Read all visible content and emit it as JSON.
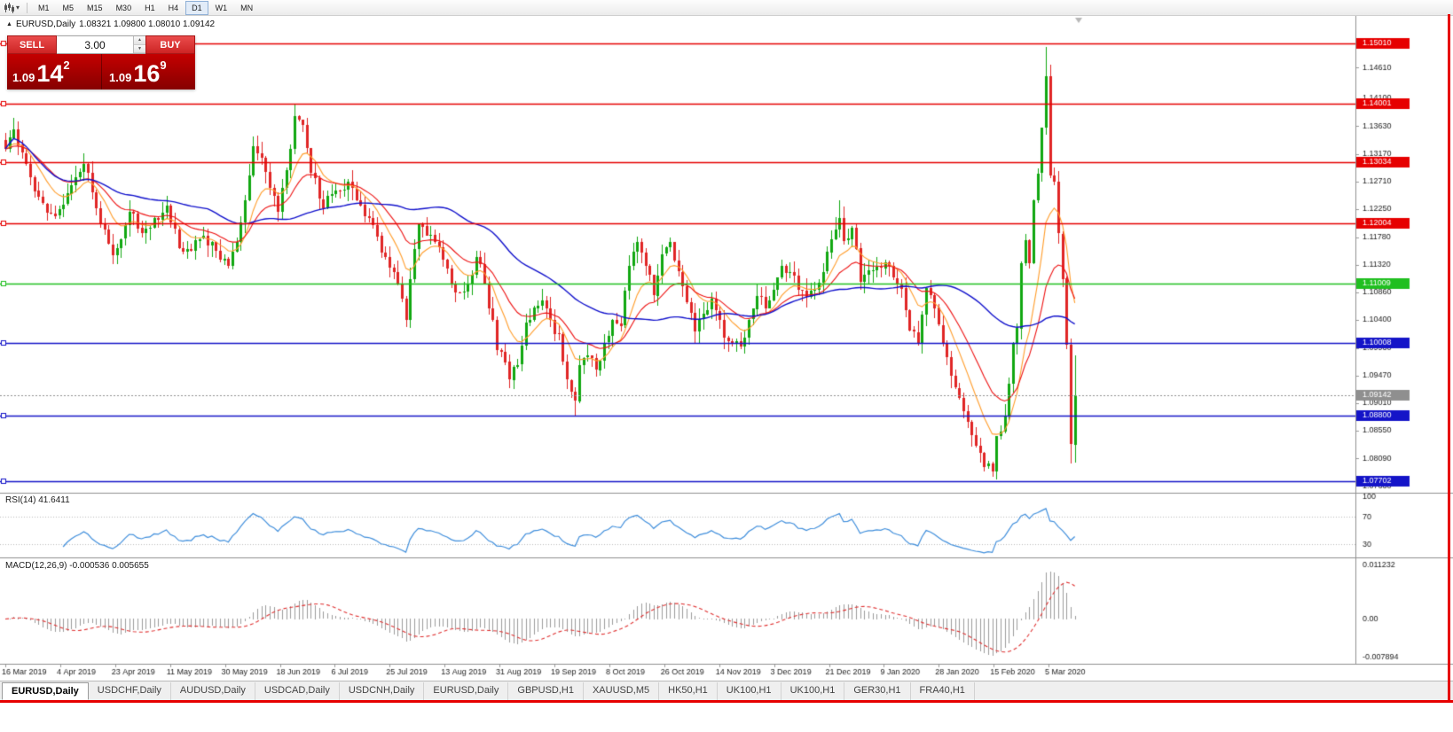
{
  "window": {
    "border_color": "#e60000"
  },
  "toolbar": {
    "timeframes": [
      "M1",
      "M5",
      "M15",
      "M30",
      "H1",
      "H4",
      "D1",
      "W1",
      "MN"
    ],
    "active_timeframe": "D1"
  },
  "chart": {
    "title_symbol": "EURUSD,Daily",
    "title_ohlc": "1.08321 1.09800 1.08010 1.09142"
  },
  "trade_panel": {
    "sell_label": "SELL",
    "buy_label": "BUY",
    "volume": "3.00",
    "sell_price": {
      "small": "1.09",
      "big": "14",
      "sup": "2"
    },
    "buy_price": {
      "small": "1.09",
      "big": "16",
      "sup": "9"
    }
  },
  "indicators": {
    "rsi_label": "RSI(14) 41.6411",
    "macd_label": "MACD(12,26,9) -0.000536 0.005655"
  },
  "tabs": {
    "active_index": 0,
    "items": [
      "EURUSD,Daily",
      "USDCHF,Daily",
      "AUDUSD,Daily",
      "USDCAD,Daily",
      "USDCNH,Daily",
      "EURUSD,Daily",
      "GBPUSD,H1",
      "XAUUSD,M5",
      "HK50,H1",
      "UK100,H1",
      "UK100,H1",
      "GER30,H1",
      "FRA40,H1"
    ]
  },
  "chart_data": {
    "type": "candlestick",
    "symbol": "EURUSD",
    "timeframe": "Daily",
    "seed": 1234567,
    "candle_count": 260,
    "candle_spacing": 4.655,
    "price_range": {
      "min": 1.0753,
      "max": 1.1547
    },
    "macd_range": {
      "min": -0.0093,
      "max": 0.0126
    },
    "axis_ticks": [
      1.1461,
      1.141,
      1.1363,
      1.1317,
      1.1271,
      1.1225,
      1.1178,
      1.1132,
      1.1086,
      1.104,
      1.0993,
      1.0947,
      1.0901,
      1.0855,
      1.0809,
      1.0763
    ],
    "hlines": [
      {
        "value": 1.1501,
        "label": "1.15010",
        "color": "#e60000"
      },
      {
        "value": 1.14001,
        "label": "1.14001",
        "color": "#e60000"
      },
      {
        "value": 1.13034,
        "label": "1.13034",
        "color": "#e60000"
      },
      {
        "value": 1.12004,
        "label": "1.12004",
        "color": "#e60000"
      },
      {
        "value": 1.11009,
        "label": "1.11009",
        "color": "#1fbf1f"
      },
      {
        "value": 1.10008,
        "label": "1.10008",
        "color": "#1414c8"
      },
      {
        "value": 1.088,
        "label": "1.08800",
        "color": "#1414c8"
      },
      {
        "value": 1.07702,
        "label": "1.07702",
        "color": "#1414c8"
      }
    ],
    "current_price": 1.09142,
    "current_price_label": "1.09142",
    "rsi_levels": [
      70,
      30
    ],
    "rsi_scale": [
      100,
      70,
      30
    ],
    "macd_scale": [
      "0.011232",
      "0.00",
      "-0.007894"
    ],
    "macd_scale_values": [
      0.011232,
      0,
      -0.007894
    ],
    "date_labels": [
      "16 Mar 2019",
      "4 Apr 2019",
      "23 Apr 2019",
      "11 May 2019",
      "30 May 2019",
      "18 Jun 2019",
      "6 Jul 2019",
      "25 Jul 2019",
      "13 Aug 2019",
      "31 Aug 2019",
      "19 Sep 2019",
      "8 Oct 2019",
      "26 Oct 2019",
      "14 Nov 2019",
      "3 Dec 2019",
      "21 Dec 2019",
      "9 Jan 2020",
      "28 Jan 2020",
      "15 Feb 2020",
      "5 Mar 2020"
    ],
    "anchors": [
      [
        0,
        1.1325
      ],
      [
        2,
        1.1358
      ],
      [
        5,
        1.13
      ],
      [
        8,
        1.1245
      ],
      [
        11,
        1.1218
      ],
      [
        13,
        1.1225
      ],
      [
        16,
        1.1265
      ],
      [
        19,
        1.13
      ],
      [
        22,
        1.1226
      ],
      [
        24,
        1.119
      ],
      [
        26,
        1.1148
      ],
      [
        28,
        1.1175
      ],
      [
        30,
        1.122
      ],
      [
        33,
        1.1185
      ],
      [
        36,
        1.121
      ],
      [
        39,
        1.123
      ],
      [
        42,
        1.116
      ],
      [
        45,
        1.1155
      ],
      [
        48,
        1.118
      ],
      [
        51,
        1.1155
      ],
      [
        54,
        1.113
      ],
      [
        56,
        1.117
      ],
      [
        58,
        1.124
      ],
      [
        60,
        1.133
      ],
      [
        62,
        1.131
      ],
      [
        64,
        1.126
      ],
      [
        66,
        1.122
      ],
      [
        68,
        1.129
      ],
      [
        70,
        1.138
      ],
      [
        72,
        1.1365
      ],
      [
        74,
        1.1285
      ],
      [
        77,
        1.1227
      ],
      [
        79,
        1.125
      ],
      [
        81,
        1.1255
      ],
      [
        83,
        1.127
      ],
      [
        85,
        1.124
      ],
      [
        88,
        1.121
      ],
      [
        90,
        1.118
      ],
      [
        92,
        1.1145
      ],
      [
        94,
        1.112
      ],
      [
        96,
        1.1076
      ],
      [
        97,
        1.104
      ],
      [
        98,
        1.1108
      ],
      [
        100,
        1.12
      ],
      [
        102,
        1.118
      ],
      [
        104,
        1.117
      ],
      [
        106,
        1.114
      ],
      [
        108,
        1.11
      ],
      [
        110,
        1.1085
      ],
      [
        112,
        1.11
      ],
      [
        114,
        1.1145
      ],
      [
        116,
        1.11
      ],
      [
        118,
        1.104
      ],
      [
        119,
        1.099
      ],
      [
        121,
        1.097
      ],
      [
        122,
        1.094
      ],
      [
        124,
        1.0965
      ],
      [
        126,
        1.1035
      ],
      [
        128,
        1.106
      ],
      [
        130,
        1.1073
      ],
      [
        132,
        1.104
      ],
      [
        134,
        1.1016
      ],
      [
        136,
        1.094
      ],
      [
        138,
        1.0905
      ],
      [
        139,
        1.0965
      ],
      [
        141,
        1.098
      ],
      [
        143,
        1.0957
      ],
      [
        145,
        1.1002
      ],
      [
        147,
        1.104
      ],
      [
        149,
        1.103
      ],
      [
        151,
        1.113
      ],
      [
        153,
        1.117
      ],
      [
        155,
        1.113
      ],
      [
        157,
        1.108
      ],
      [
        159,
        1.115
      ],
      [
        161,
        1.117
      ],
      [
        163,
        1.112
      ],
      [
        165,
        1.107
      ],
      [
        167,
        1.102
      ],
      [
        169,
        1.105
      ],
      [
        171,
        1.1075
      ],
      [
        174,
        1.101
      ],
      [
        176,
        1.1
      ],
      [
        178,
        1.0995
      ],
      [
        180,
        1.104
      ],
      [
        182,
        1.108
      ],
      [
        184,
        1.106
      ],
      [
        186,
        1.109
      ],
      [
        188,
        1.113
      ],
      [
        190,
        1.112
      ],
      [
        192,
        1.109
      ],
      [
        194,
        1.1078
      ],
      [
        196,
        1.109
      ],
      [
        198,
        1.112
      ],
      [
        200,
        1.1175
      ],
      [
        202,
        1.121
      ],
      [
        203,
        1.1172
      ],
      [
        205,
        1.1194
      ],
      [
        207,
        1.1103
      ],
      [
        209,
        1.1122
      ],
      [
        211,
        1.1128
      ],
      [
        213,
        1.1136
      ],
      [
        215,
        1.111
      ],
      [
        217,
        1.1093
      ],
      [
        219,
        1.1023
      ],
      [
        221,
        1.1002
      ],
      [
        223,
        1.1093
      ],
      [
        225,
        1.106
      ],
      [
        227,
        1.1
      ],
      [
        229,
        1.0946
      ],
      [
        231,
        1.091
      ],
      [
        233,
        1.087
      ],
      [
        235,
        1.083
      ],
      [
        237,
        1.0795
      ],
      [
        239,
        1.0787
      ],
      [
        240,
        1.0846
      ],
      [
        241,
        1.0854
      ],
      [
        242,
        1.088
      ],
      [
        244,
        1.1
      ],
      [
        245,
        1.1026
      ],
      [
        246,
        1.1135
      ],
      [
        247,
        1.1173
      ],
      [
        248,
        1.1134
      ],
      [
        249,
        1.1239
      ],
      [
        250,
        1.1284
      ],
      [
        251,
        1.136
      ],
      [
        252,
        1.1446
      ],
      [
        253,
        1.1281
      ],
      [
        254,
        1.127
      ],
      [
        255,
        1.1184
      ],
      [
        256,
        1.1109
      ],
      [
        257,
        1.0998
      ],
      [
        258,
        1.0832
      ],
      [
        259,
        1.09142
      ]
    ],
    "explicit": {
      "70": {
        "h": 1.14
      },
      "122": {
        "l": 1.0926
      },
      "138": {
        "l": 1.0879
      },
      "202": {
        "h": 1.1239
      },
      "239": {
        "l": 1.0778
      },
      "252": {
        "h": 1.1495
      },
      "258": {
        "l": 1.0801
      },
      "259": {
        "o": 1.08321,
        "h": 1.098,
        "l": 1.0801,
        "c": 1.09142
      }
    },
    "colors": {
      "up": "#11a711",
      "down": "#e02525",
      "ma_fast": "#ff9d2b",
      "ma_med": "#ee1111",
      "ma_slow": "#1010cc",
      "rsi": "#3f8edc",
      "macd_hist": "#9b9b9b",
      "macd_signal": "#e03030"
    }
  }
}
